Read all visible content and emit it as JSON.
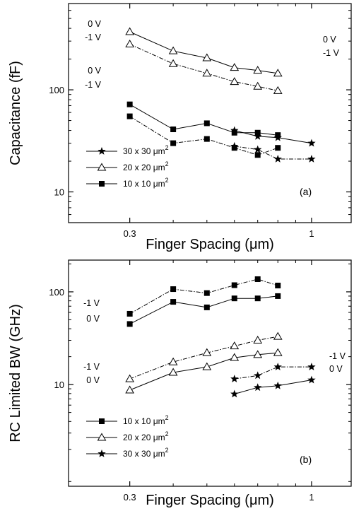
{
  "chart_data": [
    {
      "type": "line",
      "panel_label": "(a)",
      "xlabel": "Finger Spacing (μm)",
      "ylabel": "Capacitance (fF)",
      "x_scale": "log",
      "y_scale": "log",
      "xlim": [
        0.2,
        1.3
      ],
      "ylim": [
        5,
        700
      ],
      "xticks": [
        {
          "value": 0.3,
          "label": "0.3"
        },
        {
          "value": 1,
          "label": "1"
        }
      ],
      "yticks": [
        {
          "value": 10,
          "label": "10"
        },
        {
          "value": 100,
          "label": "100"
        }
      ],
      "legend": {
        "position": "bottom-left",
        "items": [
          {
            "label": "30 x 30 μm",
            "sup": "2",
            "marker": "star"
          },
          {
            "label": "20 x 20 μm",
            "sup": "2",
            "marker": "open-triangle"
          },
          {
            "label": "10 x 10 μm",
            "sup": "2",
            "marker": "filled-square"
          }
        ]
      },
      "series": [
        {
          "size": "30 x 30",
          "bias": "0 V",
          "marker": "star",
          "line": "solid",
          "x": [
            0.6,
            0.7,
            0.8,
            1.0
          ],
          "y": [
            40,
            35,
            34,
            30
          ]
        },
        {
          "size": "30 x 30",
          "bias": "-1 V",
          "marker": "star",
          "line": "dashdot",
          "x": [
            0.6,
            0.7,
            0.8,
            1.0
          ],
          "y": [
            28,
            26,
            21,
            21
          ]
        },
        {
          "size": "20 x 20",
          "bias": "0 V",
          "marker": "open-triangle",
          "line": "solid",
          "x": [
            0.3,
            0.4,
            0.5,
            0.6,
            0.7,
            0.8
          ],
          "y": [
            370,
            240,
            205,
            165,
            155,
            145
          ]
        },
        {
          "size": "20 x 20",
          "bias": "-1 V",
          "marker": "open-triangle",
          "line": "dashdot",
          "x": [
            0.3,
            0.4,
            0.5,
            0.6,
            0.7,
            0.8
          ],
          "y": [
            280,
            180,
            145,
            120,
            108,
            98
          ]
        },
        {
          "size": "10 x 10",
          "bias": "0 V",
          "marker": "filled-square",
          "line": "solid",
          "x": [
            0.3,
            0.4,
            0.5,
            0.6,
            0.7,
            0.8
          ],
          "y": [
            72,
            41,
            47,
            38,
            38,
            36
          ]
        },
        {
          "size": "10 x 10",
          "bias": "-1 V",
          "marker": "filled-square",
          "line": "dashdot",
          "x": [
            0.3,
            0.4,
            0.5,
            0.6,
            0.7,
            0.8
          ],
          "y": [
            55,
            30,
            33,
            27,
            23,
            27
          ]
        }
      ],
      "annotations": [
        "0 V",
        "-1 V",
        "0 V",
        "-1 V",
        "0 V",
        "-1 V"
      ]
    },
    {
      "type": "line",
      "panel_label": "(b)",
      "xlabel": "Finger Spacing (μm)",
      "ylabel": "RC Limited BW (GHz)",
      "x_scale": "log",
      "y_scale": "log",
      "xlim": [
        0.2,
        1.3
      ],
      "ylim": [
        0.8,
        220
      ],
      "xticks": [
        {
          "value": 0.3,
          "label": "0.3"
        },
        {
          "value": 1,
          "label": "1"
        }
      ],
      "yticks": [
        {
          "value": 10,
          "label": "10"
        },
        {
          "value": 100,
          "label": "100"
        }
      ],
      "legend": {
        "position": "bottom-left",
        "items": [
          {
            "label": "10 x 10 μm",
            "sup": "2",
            "marker": "filled-square"
          },
          {
            "label": "20 x 20 μm",
            "sup": "2",
            "marker": "open-triangle"
          },
          {
            "label": "30 x 30 μm",
            "sup": "2",
            "marker": "star"
          }
        ]
      },
      "series": [
        {
          "size": "10 x 10",
          "bias": "-1 V",
          "marker": "filled-square",
          "line": "dashdot",
          "x": [
            0.3,
            0.4,
            0.5,
            0.6,
            0.7,
            0.8
          ],
          "y": [
            58,
            107,
            97,
            118,
            137,
            117
          ]
        },
        {
          "size": "10 x 10",
          "bias": "0 V",
          "marker": "filled-square",
          "line": "solid",
          "x": [
            0.3,
            0.4,
            0.5,
            0.6,
            0.7,
            0.8
          ],
          "y": [
            45,
            78,
            68,
            85,
            85,
            90
          ]
        },
        {
          "size": "20 x 20",
          "bias": "-1 V",
          "marker": "open-triangle",
          "line": "dashdot",
          "x": [
            0.3,
            0.4,
            0.5,
            0.6,
            0.7,
            0.8
          ],
          "y": [
            11.5,
            17.5,
            22,
            26,
            30,
            33
          ]
        },
        {
          "size": "20 x 20",
          "bias": "0 V",
          "marker": "open-triangle",
          "line": "solid",
          "x": [
            0.3,
            0.4,
            0.5,
            0.6,
            0.7,
            0.8
          ],
          "y": [
            8.7,
            13.5,
            15.5,
            19.5,
            21,
            22
          ]
        },
        {
          "size": "30 x 30",
          "bias": "-1 V",
          "marker": "star",
          "line": "dashdot",
          "x": [
            0.6,
            0.7,
            0.8,
            1.0
          ],
          "y": [
            11.5,
            12.5,
            15.5,
            15.5
          ]
        },
        {
          "size": "30 x 30",
          "bias": "0 V",
          "marker": "star",
          "line": "solid",
          "x": [
            0.6,
            0.7,
            0.8,
            1.0
          ],
          "y": [
            7.9,
            9.3,
            9.7,
            11.2
          ]
        }
      ],
      "annotations": [
        "-1 V",
        "0 V",
        "-1 V",
        "0 V",
        "-1 V",
        "0 V"
      ]
    }
  ]
}
